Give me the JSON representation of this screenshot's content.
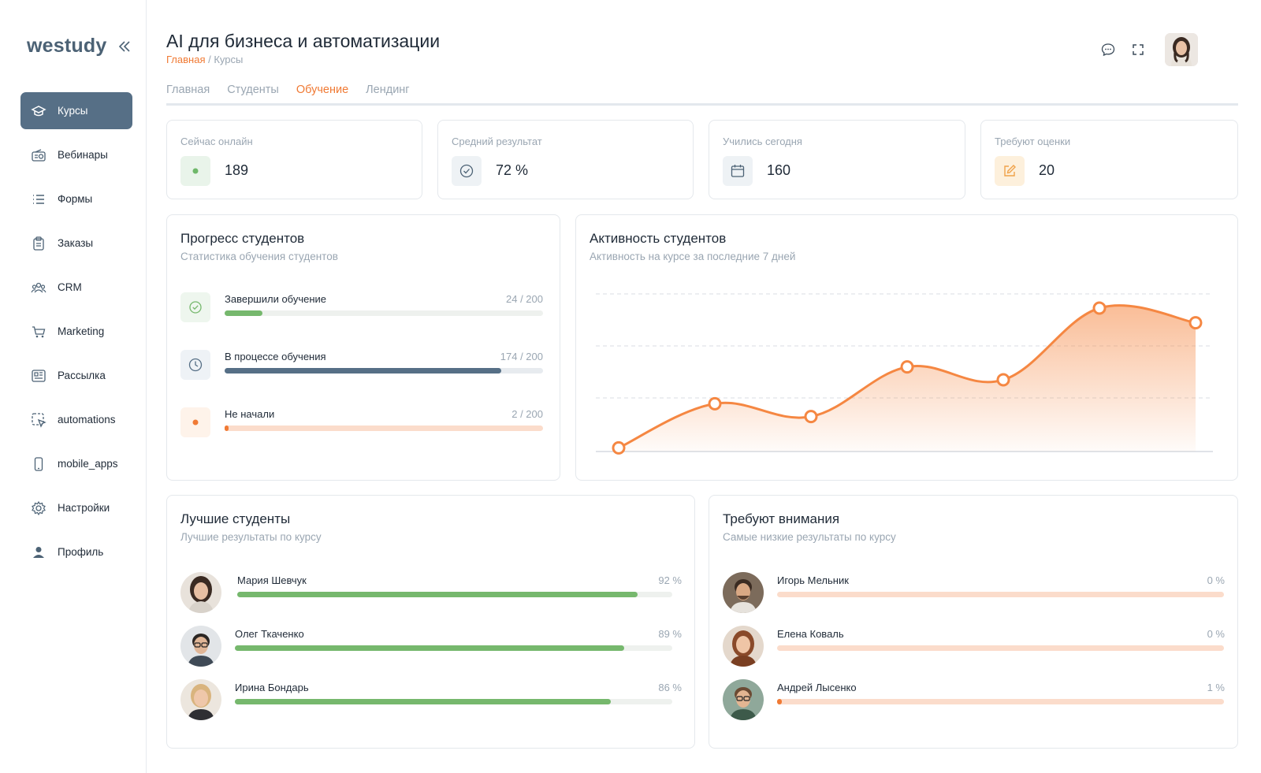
{
  "brand": {
    "logo": "westudy",
    "collapse_icon": "double-chevron-left-icon"
  },
  "sidebar": {
    "items": [
      {
        "label": "Курсы",
        "icon": "graduation-cap-icon",
        "active": true
      },
      {
        "label": "Вебинары",
        "icon": "radio-icon",
        "active": false
      },
      {
        "label": "Формы",
        "icon": "list-icon",
        "active": false
      },
      {
        "label": "Заказы",
        "icon": "clipboard-icon",
        "active": false
      },
      {
        "label": "CRM",
        "icon": "users-icon",
        "active": false
      },
      {
        "label": "Marketing",
        "icon": "cart-icon",
        "active": false
      },
      {
        "label": "Рассылка",
        "icon": "newsletter-icon",
        "active": false
      },
      {
        "label": "automations",
        "icon": "cursor-select-icon",
        "active": false
      },
      {
        "label": "mobile_apps",
        "icon": "phone-icon",
        "active": false
      },
      {
        "label": "Настройки",
        "icon": "gear-icon",
        "active": false
      },
      {
        "label": "Профиль",
        "icon": "user-icon",
        "active": false
      }
    ]
  },
  "header": {
    "title": "AI для бизнеса и автоматизации",
    "breadcrumb_home": "Главная",
    "breadcrumb_sep": " / ",
    "breadcrumb_current": "Курсы"
  },
  "tabs": [
    {
      "label": "Главная",
      "active": false
    },
    {
      "label": "Студенты",
      "active": false
    },
    {
      "label": "Обучение",
      "active": true
    },
    {
      "label": "Лендинг",
      "active": false
    }
  ],
  "kpis": [
    {
      "label": "Сейчас онлайн",
      "value": "189",
      "icon": "online-dot-icon",
      "bg": "#e9f4ea"
    },
    {
      "label": "Средний результат",
      "value": "72 %",
      "icon": "check-circle-icon",
      "bg": "#eef2f5"
    },
    {
      "label": "Учились сегодня",
      "value": "160",
      "icon": "calendar-icon",
      "bg": "#eef2f5"
    },
    {
      "label": "Требуют оценки",
      "value": "20",
      "icon": "edit-icon",
      "bg": "#fdf0dc"
    }
  ],
  "progress": {
    "title": "Прогресс студентов",
    "subtitle": "Статистика обучения студентов",
    "rows": [
      {
        "label": "Завершили обучение",
        "value_text": "24 / 200",
        "value": 24,
        "total": 200,
        "color": "#76b86d",
        "track": "#eef1ee",
        "icon": "check-circle-icon",
        "bg": "#eef6ee"
      },
      {
        "label": "В процессе обучения",
        "value_text": "174 / 200",
        "value": 174,
        "total": 200,
        "color": "#566f86",
        "track": "#e7ebef",
        "icon": "clock-icon",
        "bg": "#eef2f6"
      },
      {
        "label": "Не начали",
        "value_text": "2 / 200",
        "value": 2,
        "total": 200,
        "color": "#f07a34",
        "track": "#fbdccb",
        "icon": "dot-icon",
        "bg": "#fef3ea"
      }
    ]
  },
  "activity": {
    "title": "Активность студентов",
    "subtitle": "Активность на курсе за последние 7 дней"
  },
  "chart_data": {
    "type": "area",
    "x": [
      1,
      2,
      3,
      4,
      5,
      6,
      7
    ],
    "values": [
      2,
      26,
      19,
      46,
      39,
      78,
      70
    ],
    "ylim": [
      0,
      90
    ],
    "grid": true,
    "color": "#f58742"
  },
  "best": {
    "title": "Лучшие студенты",
    "subtitle": "Лучшие результаты по курсу",
    "rows": [
      {
        "name": "Мария Шевчук",
        "value_text": "92 %",
        "value": 92
      },
      {
        "name": "Олег Ткаченко",
        "value_text": "89 %",
        "value": 89
      },
      {
        "name": "Ирина Бондарь",
        "value_text": "86 %",
        "value": 86
      }
    ]
  },
  "attention": {
    "title": "Требуют внимания",
    "subtitle": "Самые низкие результаты по курсу",
    "rows": [
      {
        "name": "Игорь Мельник",
        "value_text": "0 %",
        "value": 0
      },
      {
        "name": "Елена Коваль",
        "value_text": "0 %",
        "value": 0
      },
      {
        "name": "Андрей Лысенко",
        "value_text": "1 %",
        "value": 1
      }
    ]
  }
}
